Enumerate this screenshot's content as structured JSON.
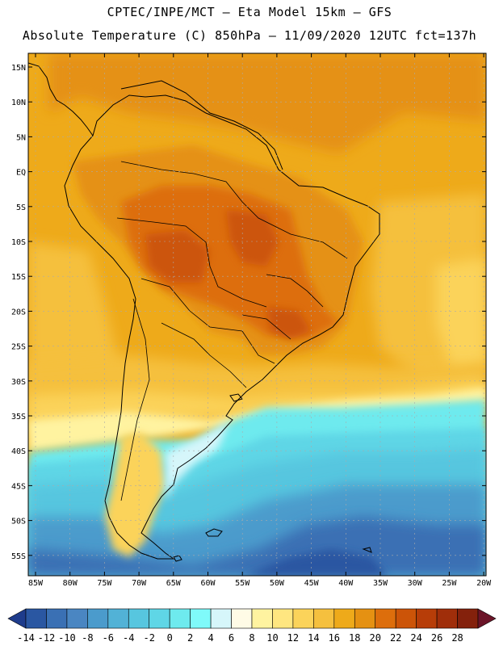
{
  "header": {
    "title_line1": "CPTEC/INPE/MCT –  Eta Model 15km – GFS",
    "title_line2": "Absolute Temperature (C) 850hPa – 11/09/2020 12UTC fct=137h"
  },
  "map": {
    "lat_ticks": [
      "15N",
      "10N",
      "5N",
      "EQ",
      "5S",
      "10S",
      "15S",
      "20S",
      "25S",
      "30S",
      "35S",
      "40S",
      "45S",
      "50S",
      "55S"
    ],
    "lon_ticks": [
      "85W",
      "80W",
      "75W",
      "70W",
      "65W",
      "60W",
      "55W",
      "50W",
      "45W",
      "40W",
      "35W",
      "30W",
      "25W",
      "20W"
    ]
  },
  "colorbar": {
    "levels": [
      "-14",
      "-12",
      "-10",
      "-8",
      "-6",
      "-4",
      "-2",
      "0",
      "2",
      "4",
      "6",
      "8",
      "10",
      "12",
      "14",
      "16",
      "18",
      "20",
      "22",
      "24",
      "26",
      "28"
    ],
    "colors": [
      "#1e3c8c",
      "#2a57a2",
      "#3a70b4",
      "#4a86c2",
      "#4b9bcc",
      "#52b2d6",
      "#57c6df",
      "#5fd6e6",
      "#6eeaee",
      "#7ffafa",
      "#d6f6fa",
      "#fffbe6",
      "#fff3a0",
      "#ffe680",
      "#fbd35a",
      "#f5c03e",
      "#eeaa1a",
      "#e59112",
      "#dd6e0c",
      "#cc5408",
      "#b73d08",
      "#a02e0a",
      "#84210c",
      "#6b1428"
    ]
  },
  "colors": {
    "background": "#ffffff",
    "grid": "#aaaaaa",
    "coast": "#000000"
  }
}
